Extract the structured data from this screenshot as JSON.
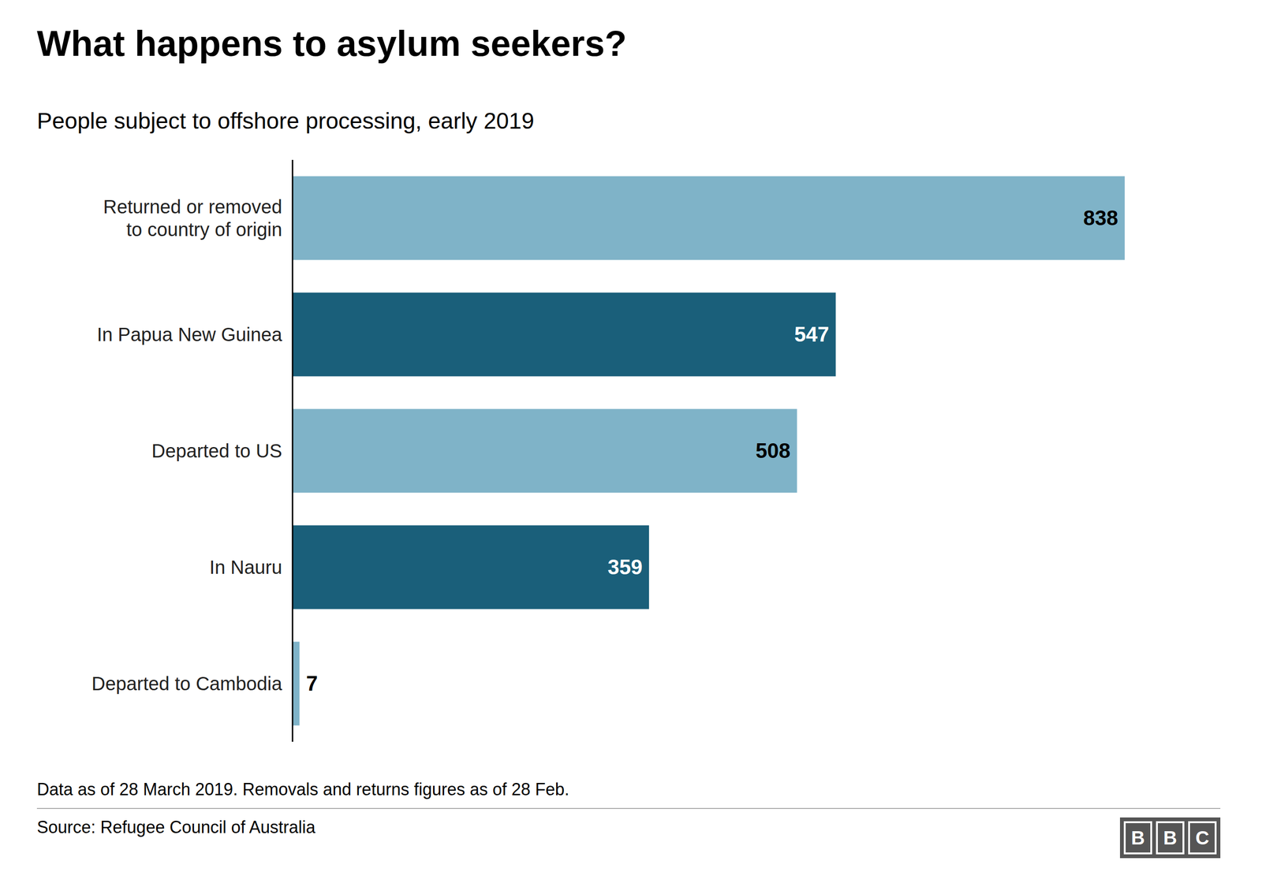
{
  "chart_data": {
    "type": "bar",
    "orientation": "horizontal",
    "title": "What happens to asylum seekers?",
    "subtitle": "People subject to offshore processing, early 2019",
    "categories": [
      "Returned or removed\nto country of origin",
      "In Papua New Guinea",
      "Departed to US",
      "In Nauru",
      "Departed to Cambodia"
    ],
    "values": [
      838,
      547,
      508,
      359,
      7
    ],
    "colors": [
      "#7fb3c8",
      "#1a5f7a",
      "#7fb3c8",
      "#1a5f7a",
      "#7fb3c8"
    ],
    "xlim": [
      0,
      920
    ],
    "data_labels": true,
    "tick_labels": "y",
    "grid": false,
    "footnote": "Data as of 28 March 2019. Removals and returns figures as of 28 Feb.",
    "source": "Source: Refugee Council of Australia",
    "annotations": [
      "B",
      "B",
      "C"
    ]
  }
}
